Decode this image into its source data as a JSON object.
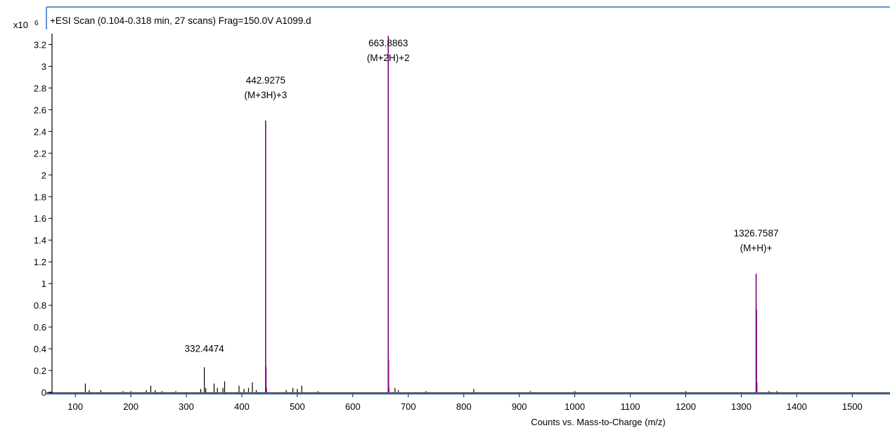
{
  "chart_data": {
    "type": "bar",
    "title": "+ESI Scan (0.104-0.318 min, 27 scans) Frag=150.0V A1099.d",
    "xlabel": "Counts vs. Mass-to-Charge (m/z)",
    "ylabel": "",
    "y_scale_prefix": "x10",
    "y_scale_exponent": "6",
    "xlim": [
      58,
      1568
    ],
    "ylim": [
      0,
      3.3
    ],
    "xticks": [
      100,
      200,
      300,
      400,
      500,
      600,
      700,
      800,
      900,
      1000,
      1100,
      1200,
      1300,
      1400,
      1500
    ],
    "yticks": [
      0,
      0.2,
      0.4,
      0.6,
      0.8,
      1,
      1.2,
      1.4,
      1.6,
      1.8,
      2,
      2.2,
      2.4,
      2.6,
      2.8,
      3,
      3.2
    ],
    "grid": false,
    "colors": {
      "labeled_peaks": "#800080",
      "other_peaks": "#000000",
      "axes": "#000000",
      "frame": "#3a6fc4"
    },
    "peaks": [
      {
        "mz": 118,
        "intensity": 0.08,
        "color": "#000000"
      },
      {
        "mz": 125,
        "intensity": 0.02,
        "color": "#000000"
      },
      {
        "mz": 146,
        "intensity": 0.02,
        "color": "#000000"
      },
      {
        "mz": 186,
        "intensity": 0.01,
        "color": "#000000"
      },
      {
        "mz": 200,
        "intensity": 0.01,
        "color": "#000000"
      },
      {
        "mz": 228,
        "intensity": 0.02,
        "color": "#000000"
      },
      {
        "mz": 236,
        "intensity": 0.06,
        "color": "#000000"
      },
      {
        "mz": 244,
        "intensity": 0.02,
        "color": "#000000"
      },
      {
        "mz": 256,
        "intensity": 0.01,
        "color": "#000000"
      },
      {
        "mz": 281,
        "intensity": 0.01,
        "color": "#000000"
      },
      {
        "mz": 326,
        "intensity": 0.03,
        "color": "#000000"
      },
      {
        "mz": 332.4474,
        "intensity": 0.23,
        "color": "#000000",
        "label": "332.4474"
      },
      {
        "mz": 335,
        "intensity": 0.04,
        "color": "#000000"
      },
      {
        "mz": 350,
        "intensity": 0.08,
        "color": "#000000"
      },
      {
        "mz": 356,
        "intensity": 0.04,
        "color": "#000000"
      },
      {
        "mz": 366,
        "intensity": 0.04,
        "color": "#000000"
      },
      {
        "mz": 369,
        "intensity": 0.1,
        "color": "#000000"
      },
      {
        "mz": 395,
        "intensity": 0.06,
        "color": "#000000"
      },
      {
        "mz": 404,
        "intensity": 0.03,
        "color": "#000000"
      },
      {
        "mz": 412,
        "intensity": 0.04,
        "color": "#000000"
      },
      {
        "mz": 419,
        "intensity": 0.09,
        "color": "#000000"
      },
      {
        "mz": 426,
        "intensity": 0.02,
        "color": "#000000"
      },
      {
        "mz": 442.9275,
        "intensity": 2.5,
        "color": "#800080",
        "label": "442.9275",
        "label2": "(M+3H)+3"
      },
      {
        "mz": 443.6,
        "intensity": 0.23,
        "color": "#800080"
      },
      {
        "mz": 444.3,
        "intensity": 0.04,
        "color": "#800080"
      },
      {
        "mz": 480,
        "intensity": 0.02,
        "color": "#000000"
      },
      {
        "mz": 492,
        "intensity": 0.04,
        "color": "#000000"
      },
      {
        "mz": 500,
        "intensity": 0.03,
        "color": "#000000"
      },
      {
        "mz": 508,
        "intensity": 0.06,
        "color": "#000000"
      },
      {
        "mz": 537,
        "intensity": 0.01,
        "color": "#000000"
      },
      {
        "mz": 663.8863,
        "intensity": 3.28,
        "color": "#800080",
        "label": "663.8863",
        "label2": "(M+2H)+2"
      },
      {
        "mz": 664.4,
        "intensity": 0.3,
        "color": "#800080"
      },
      {
        "mz": 665,
        "intensity": 0.04,
        "color": "#800080"
      },
      {
        "mz": 676,
        "intensity": 0.04,
        "color": "#000000"
      },
      {
        "mz": 682,
        "intensity": 0.02,
        "color": "#000000"
      },
      {
        "mz": 732,
        "intensity": 0.01,
        "color": "#000000"
      },
      {
        "mz": 818,
        "intensity": 0.03,
        "color": "#000000"
      },
      {
        "mz": 920,
        "intensity": 0.01,
        "color": "#000000"
      },
      {
        "mz": 1000,
        "intensity": 0.01,
        "color": "#000000"
      },
      {
        "mz": 1200,
        "intensity": 0.01,
        "color": "#000000"
      },
      {
        "mz": 1326.7587,
        "intensity": 1.09,
        "color": "#800080",
        "label": "1326.7587",
        "label2": "(M+H)+"
      },
      {
        "mz": 1327.4,
        "intensity": 0.76,
        "color": "#800080"
      },
      {
        "mz": 1328.1,
        "intensity": 0.09,
        "color": "#800080"
      },
      {
        "mz": 1350,
        "intensity": 0.01,
        "color": "#000000"
      },
      {
        "mz": 1364,
        "intensity": 0.01,
        "color": "#000000"
      }
    ]
  }
}
